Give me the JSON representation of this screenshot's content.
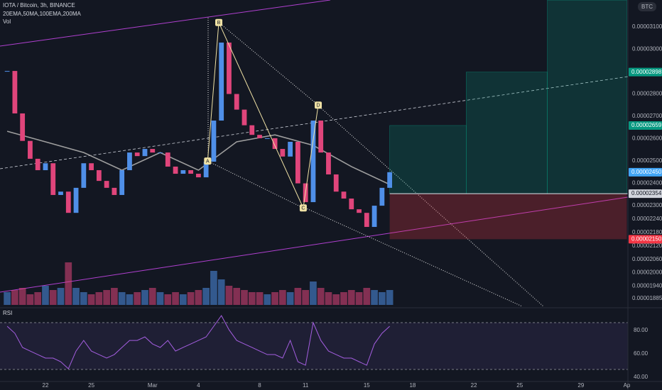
{
  "chart_data": {
    "type": "candlestick",
    "title": "IOTA / Bitcoin, 3h, BINANCE",
    "indicators": "20EMA,50MA,100EMA,200MA",
    "volume_label": "Vol",
    "currency": "BTC",
    "up_color": "#4f8fe8",
    "down_color": "#e0457b",
    "grid": false,
    "x": [
      19.5,
      20,
      20.5,
      21,
      21.5,
      22,
      22.5,
      23,
      23.5,
      24,
      24.5,
      25,
      25.5,
      26,
      26.5,
      27,
      27.5,
      28,
      28.5,
      29,
      29.5,
      30,
      30.5,
      31,
      31.5,
      32,
      32.5,
      33,
      33.5,
      34,
      34.5,
      35,
      35.5,
      36,
      36.5,
      37,
      37.5,
      38,
      38.5,
      39,
      39.5,
      40,
      40.5,
      41,
      41.5,
      42,
      42.5,
      43,
      43.5,
      44,
      44.5
    ],
    "values": [
      2.903e-05,
      2.713e-05,
      2.59e-05,
      2.51e-05,
      2.459e-05,
      2.49e-05,
      2.348e-05,
      2.363e-05,
      2.268e-05,
      2.38e-05,
      2.49e-05,
      2.459e-05,
      2.411e-05,
      2.38e-05,
      2.348e-05,
      2.459e-05,
      2.538e-05,
      2.522e-05,
      2.554e-05,
      2.538e-05,
      2.538e-05,
      2.475e-05,
      2.443e-05,
      2.459e-05,
      2.443e-05,
      2.427e-05,
      2.497e-05,
      2.681e-05,
      3.03e-05,
      2.8e-05,
      2.73e-05,
      2.66e-05,
      2.617e-05,
      2.602e-05,
      2.602e-05,
      2.554e-05,
      2.52e-05,
      2.586e-05,
      2.4e-05,
      2.316e-05,
      2.681e-05,
      2.538e-05,
      2.44e-05,
      2.363e-05,
      2.332e-05,
      2.284e-05,
      2.268e-05,
      2.205e-05,
      2.3e-05,
      2.38e-05,
      2.45e-05
    ],
    "volume": [
      30,
      35,
      40,
      25,
      30,
      45,
      35,
      40,
      100,
      40,
      30,
      25,
      30,
      35,
      40,
      30,
      25,
      30,
      35,
      40,
      30,
      25,
      30,
      25,
      30,
      35,
      40,
      80,
      60,
      45,
      40,
      35,
      30,
      30,
      25,
      30,
      35,
      30,
      40,
      35,
      55,
      40,
      30,
      25,
      30,
      35,
      30,
      40,
      35,
      30,
      35
    ],
    "ma": {
      "color": "#9e9e9e",
      "x": [
        19.5,
        22,
        24.5,
        27,
        29.5,
        32,
        34.5,
        37,
        39.5,
        42,
        44.5
      ],
      "values": [
        2.633e-05,
        2.586e-05,
        2.538e-05,
        2.459e-05,
        2.538e-05,
        2.459e-05,
        2.586e-05,
        2.617e-05,
        2.57e-05,
        2.475e-05,
        2.395e-05
      ]
    },
    "xlim": [
      19.03,
      60.07
    ],
    "xticks": [
      22,
      25,
      {
        "value": 29,
        "label": "Mar"
      },
      {
        "value": 32,
        "label": "4"
      },
      {
        "value": 36,
        "label": "8"
      },
      {
        "value": 39,
        "label": "11"
      },
      {
        "value": 43,
        "label": "15"
      },
      {
        "value": 46,
        "label": "18"
      },
      {
        "value": 50,
        "label": "22"
      },
      {
        "value": 53,
        "label": "25"
      },
      {
        "value": 57,
        "label": "29"
      },
      {
        "value": 60,
        "label": "Ap"
      }
    ],
    "ylim": [
      1.856e-05,
      3.2206e-05
    ],
    "yticks": [
      {
        "value": 3.1e-05,
        "label": "0.00003100"
      },
      {
        "value": 3e-05,
        "label": "0.00003000"
      },
      {
        "value": 2.8e-05,
        "label": "0.00002800"
      },
      {
        "value": 2.7e-05,
        "label": "0.00002700"
      },
      {
        "value": 2.6e-05,
        "label": "0.00002600"
      },
      {
        "value": 2.5e-05,
        "label": "0.00002500"
      },
      {
        "value": 2.4e-05,
        "label": "0.00002400"
      },
      {
        "value": 2.3e-05,
        "label": "0.00002300"
      },
      {
        "value": 2.24e-05,
        "label": "0.00002240"
      },
      {
        "value": 2.18e-05,
        "label": "0.00002180"
      },
      {
        "value": 2.12e-05,
        "label": "0.00002120"
      },
      {
        "value": 2.06e-05,
        "label": "0.00002060"
      },
      {
        "value": 2e-05,
        "label": "0.00002000"
      },
      {
        "value": 1.94e-05,
        "label": "0.00001940"
      },
      {
        "value": 1.885e-05,
        "label": "0.00001885"
      }
    ],
    "price_tags": [
      {
        "value": 2.898e-05,
        "label": "0.00002898",
        "color": "#089981",
        "text_color": "#ffffff"
      },
      {
        "value": 2.659e-05,
        "label": "0.00002659",
        "color": "#089981",
        "text_color": "#ffffff"
      },
      {
        "value": 2.45e-05,
        "label": "0.00002450",
        "color": "#42a5f5",
        "text_color": "#ffffff"
      },
      {
        "value": 2.354e-05,
        "label": "0.00002354",
        "color": "#d1d4dc",
        "text_color": "#131722"
      },
      {
        "value": 2.15e-05,
        "label": "0.00002150",
        "color": "#f23645",
        "text_color": "#ffffff"
      }
    ],
    "pattern": {
      "color": "#f0e2a5",
      "labels": [
        "A",
        "B",
        "C",
        "D"
      ],
      "x": [
        32.6,
        33.33,
        38.85,
        39.83
      ],
      "values": [
        2.5e-05,
        3.12e-05,
        2.29e-05,
        2.75e-05
      ]
    },
    "position": {
      "entry": 2.354e-05,
      "targets": [
        {
          "value": 2.659e-05,
          "x": [
            44.5,
            49.5
          ]
        },
        {
          "value": 2.898e-05,
          "x": [
            49.5,
            54.8
          ]
        },
        {
          "value": 3.22e-05,
          "x": [
            54.8,
            60.0
          ]
        }
      ],
      "stop": {
        "value": 2.15e-05,
        "x": [
          44.5,
          60.0
        ]
      },
      "target_color": "rgba(8,153,129,0.22)",
      "stop_color": "rgba(242,54,69,0.25)"
    },
    "rsi": {
      "title": "RSI",
      "color": "#a45ee0",
      "ylim": [
        36.4,
        97
      ],
      "yticks": [
        {
          "value": 80,
          "label": "80.00"
        },
        {
          "value": 60,
          "label": "60.00"
        },
        {
          "value": 40,
          "label": "40.00"
        }
      ],
      "values": [
        83.6,
        77.6,
        65.5,
        62.4,
        59.4,
        56.4,
        56.4,
        53.3,
        47.3,
        62.4,
        71.5,
        62.4,
        59.4,
        56.4,
        59.4,
        65.5,
        71.5,
        71.5,
        74.5,
        68.5,
        65.5,
        71.5,
        62.4,
        65.5,
        68.5,
        71.5,
        74.5,
        83.6,
        92.7,
        80.6,
        71.5,
        68.5,
        65.5,
        62.4,
        59.4,
        59.4,
        56.4,
        71.5,
        53.3,
        50.3,
        86.7,
        71.5,
        62.4,
        59.4,
        56.4,
        56.4,
        53.3,
        50.3,
        68.5,
        77.6,
        83.6
      ]
    }
  }
}
